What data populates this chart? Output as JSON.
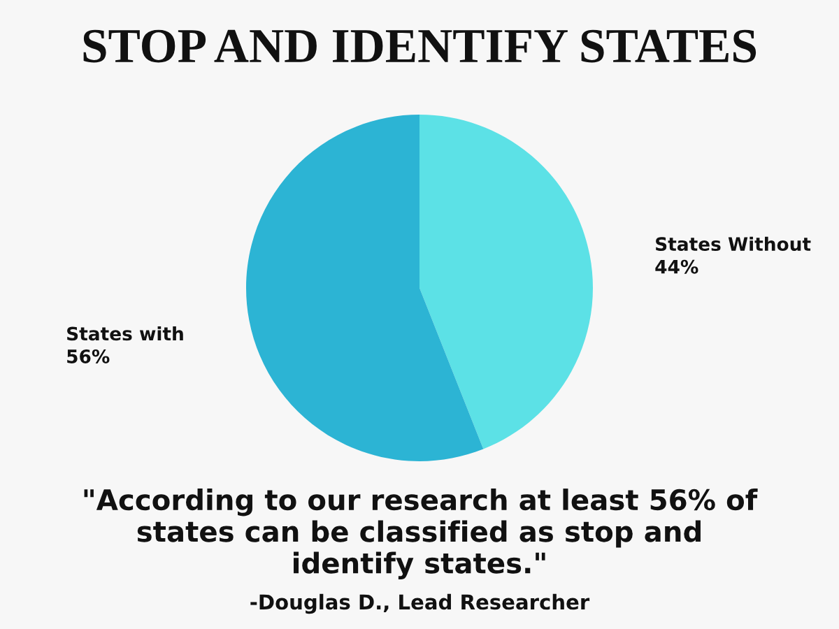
{
  "chart_data": {
    "type": "pie",
    "title": "STOP AND IDENTIFY STATES",
    "categories": [
      "States Without",
      "States with"
    ],
    "values": [
      44,
      56
    ],
    "value_labels": [
      "44%",
      "56%"
    ],
    "colors": [
      "#5ce1e6",
      "#2cb4d4"
    ],
    "annotations": [
      "\"According to our research at least 56% of states can be classified as stop and identify states.\"",
      "-Douglas D., Lead Researcher"
    ]
  }
}
